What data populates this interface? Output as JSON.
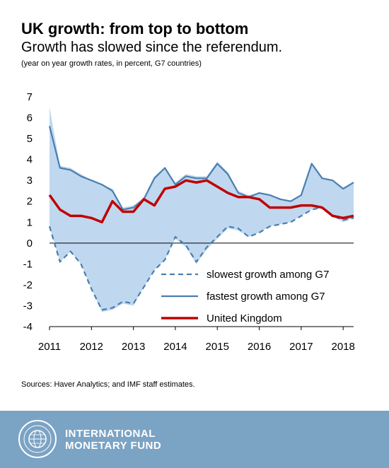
{
  "header": {
    "title": "UK growth: from top to bottom",
    "subtitle": "Growth has slowed since the referendum.",
    "note": "(year on year growth rates, in percent, G7 countries)"
  },
  "footer": {
    "sources": "Sources: Haver Analytics; and IMF staff estimates.",
    "org_line1": "INTERNATIONAL",
    "org_line2": "MONETARY FUND",
    "logo_icon": "imf-seal-icon"
  },
  "colors": {
    "band": "#bfd8ef",
    "slowest": "#4a7fb0",
    "fastest": "#4a7fb0",
    "uk": "#c00000",
    "footer_bg": "#7ba3c4"
  },
  "chart_data": {
    "type": "area",
    "x_tick_labels": [
      "2011",
      "2012",
      "2013",
      "2014",
      "2015",
      "2016",
      "2017",
      "2018"
    ],
    "y_ticks": [
      "7",
      "6",
      "5",
      "4",
      "3",
      "2",
      "1",
      "0",
      "-1",
      "-2",
      "-3",
      "-4"
    ],
    "ylim": [
      -4,
      7
    ],
    "xlim": [
      2011,
      2018.25
    ],
    "grid": false,
    "legend_position": "bottom-right",
    "x": [
      2011.0,
      2011.25,
      2011.5,
      2011.75,
      2012.0,
      2012.25,
      2012.5,
      2012.75,
      2013.0,
      2013.25,
      2013.5,
      2013.75,
      2014.0,
      2014.25,
      2014.5,
      2014.75,
      2015.0,
      2015.25,
      2015.5,
      2015.75,
      2016.0,
      2016.25,
      2016.5,
      2016.75,
      2017.0,
      2017.25,
      2017.5,
      2017.75,
      2018.0,
      2018.25
    ],
    "series": [
      {
        "name": "slowest growth among G7",
        "style": "dashed",
        "values": [
          0.8,
          -0.9,
          -0.4,
          -1.0,
          -2.2,
          -3.2,
          -3.1,
          -2.8,
          -2.9,
          -2.1,
          -1.3,
          -0.8,
          0.3,
          -0.1,
          -0.9,
          -0.2,
          0.3,
          0.8,
          0.7,
          0.3,
          0.5,
          0.8,
          0.9,
          1.0,
          1.3,
          1.6,
          1.7,
          1.3,
          1.1,
          1.2
        ]
      },
      {
        "name": "fastest growth among G7",
        "style": "solid",
        "values": [
          5.6,
          3.6,
          3.5,
          3.2,
          3.0,
          2.8,
          2.5,
          1.6,
          1.7,
          2.1,
          3.1,
          3.6,
          2.8,
          3.2,
          3.1,
          3.1,
          3.8,
          3.3,
          2.4,
          2.2,
          2.4,
          2.3,
          2.1,
          2.0,
          2.3,
          3.8,
          3.1,
          3.0,
          2.6,
          2.9
        ]
      },
      {
        "name": "United Kingdom",
        "style": "thick",
        "values": [
          2.3,
          1.6,
          1.3,
          1.3,
          1.2,
          1.0,
          2.0,
          1.5,
          1.5,
          2.1,
          1.8,
          2.6,
          2.7,
          3.0,
          2.9,
          3.0,
          2.7,
          2.4,
          2.2,
          2.2,
          2.1,
          1.7,
          1.7,
          1.7,
          1.8,
          1.8,
          1.7,
          1.3,
          1.2,
          1.3
        ]
      }
    ],
    "band": {
      "x": [
        2011.0,
        2011.25,
        2011.5,
        2011.75,
        2012.0,
        2012.25,
        2012.5,
        2012.75,
        2013.0,
        2013.25,
        2013.5,
        2013.75,
        2014.0,
        2014.25,
        2014.5,
        2014.75,
        2015.0,
        2015.25,
        2015.5,
        2015.75,
        2016.0,
        2016.25,
        2016.5,
        2016.75,
        2017.0,
        2017.25,
        2017.5,
        2017.75,
        2018.0,
        2018.25
      ],
      "upper": [
        6.5,
        3.7,
        3.6,
        3.3,
        3.0,
        2.8,
        2.6,
        1.7,
        1.8,
        2.2,
        3.2,
        3.6,
        2.9,
        3.3,
        3.2,
        3.2,
        3.9,
        3.4,
        2.5,
        2.3,
        2.4,
        2.3,
        2.1,
        2.0,
        2.3,
        3.8,
        3.1,
        3.0,
        2.6,
        2.9
      ],
      "lower": [
        0.8,
        -0.9,
        -0.4,
        -1.0,
        -2.2,
        -3.3,
        -3.2,
        -2.9,
        -3.0,
        -2.1,
        -1.3,
        -0.8,
        0.2,
        -0.2,
        -1.0,
        -0.3,
        0.2,
        0.7,
        0.6,
        0.3,
        0.5,
        0.8,
        0.9,
        1.0,
        1.3,
        1.6,
        1.7,
        1.3,
        1.0,
        1.2
      ]
    }
  }
}
